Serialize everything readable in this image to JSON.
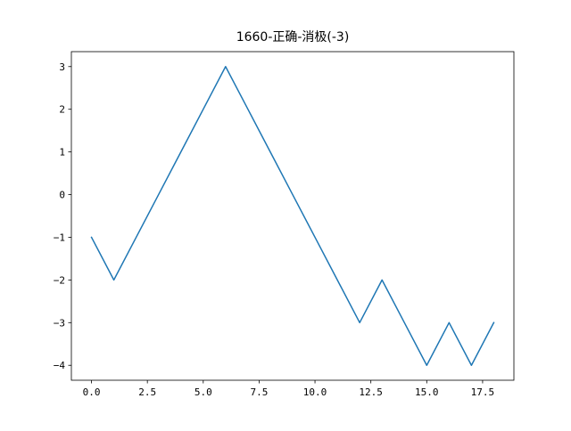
{
  "chart_data": {
    "type": "line",
    "title": "1660-正确-消极(-3)",
    "xlabel": "",
    "ylabel": "",
    "x": [
      0,
      1,
      2,
      3,
      4,
      5,
      6,
      7,
      8,
      9,
      10,
      11,
      12,
      13,
      14,
      15,
      16,
      17,
      18
    ],
    "series": [
      {
        "values": [
          -1,
          -2,
          -1,
          0,
          1,
          2,
          3,
          2,
          1,
          0,
          -1,
          -2,
          -3,
          -2,
          -3,
          -4,
          -3,
          -4,
          -3
        ],
        "color": "#1f77b4"
      }
    ],
    "xlim": [
      -0.9,
      18.9
    ],
    "ylim": [
      -4.35,
      3.35
    ],
    "xticks": [
      0,
      2.5,
      5,
      7.5,
      10,
      12.5,
      15,
      17.5
    ],
    "xtick_labels": [
      "0.0",
      "2.5",
      "5.0",
      "7.5",
      "10.0",
      "12.5",
      "15.0",
      "17.5"
    ],
    "yticks": [
      -4,
      -3,
      -2,
      -1,
      0,
      1,
      2,
      3
    ],
    "ytick_labels": [
      "−4",
      "−3",
      "−2",
      "−1",
      "0",
      "1",
      "2",
      "3"
    ],
    "grid": false,
    "legend": "none"
  }
}
